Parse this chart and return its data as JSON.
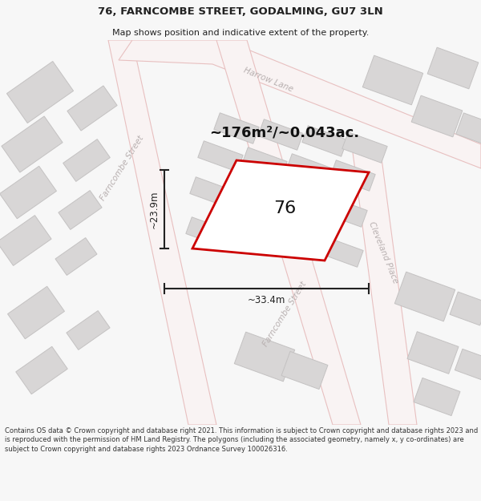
{
  "title_line1": "76, FARNCOMBE STREET, GODALMING, GU7 3LN",
  "title_line2": "Map shows position and indicative extent of the property.",
  "area_text": "~176m²/~0.043ac.",
  "label_76": "76",
  "dim_height": "~23.9m",
  "dim_width": "~33.4m",
  "copyright_text": "Contains OS data © Crown copyright and database right 2021. This information is subject to Crown copyright and database rights 2023 and is reproduced with the permission of HM Land Registry. The polygons (including the associated geometry, namely x, y co-ordinates) are subject to Crown copyright and database rights 2023 Ordnance Survey 100026316.",
  "bg_color": "#f7f7f7",
  "map_bg": "#eeecec",
  "road_fill": "#f9f3f3",
  "road_edge": "#e8c0c0",
  "bld_fill": "#d8d6d6",
  "bld_edge": "#c4c2c2",
  "prop_fill": "#ffffff",
  "prop_edge": "#cc0000",
  "street_color": "#b8b0b0",
  "dim_color": "#222222",
  "title_color": "#222222",
  "copy_color": "#333333",
  "fig_w": 6.0,
  "fig_h": 6.25,
  "dpi": 100
}
